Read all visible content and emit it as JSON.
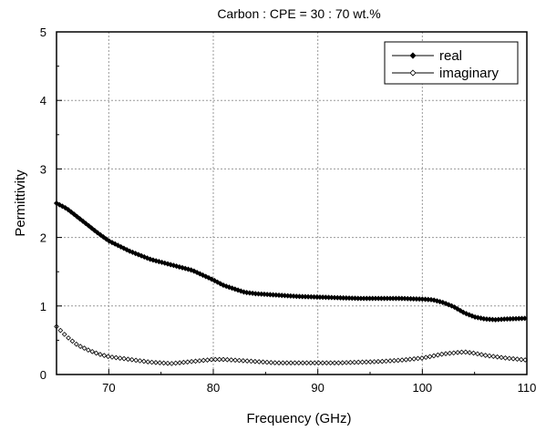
{
  "chart_data": {
    "type": "line",
    "title": "Carbon : CPE = 30 : 70 wt.%",
    "xlabel": "Frequency (GHz)",
    "ylabel": "Permittivity",
    "xlim": [
      65,
      110
    ],
    "ylim": [
      0,
      5
    ],
    "xticks": [
      "70",
      "80",
      "90",
      "100",
      "110"
    ],
    "yticks": [
      "0",
      "1",
      "2",
      "3",
      "4",
      "5"
    ],
    "grid": true,
    "legend_position": "top-right",
    "series": [
      {
        "name": "real",
        "marker": "filled-diamond",
        "color": "#000000",
        "x": [
          65,
          66,
          67,
          68,
          69,
          70,
          72,
          74,
          76,
          78,
          79,
          80,
          81,
          82,
          83,
          84,
          86,
          88,
          90,
          92,
          94,
          96,
          98,
          100,
          101,
          102,
          103,
          104,
          105,
          106,
          107,
          108,
          110
        ],
        "y": [
          2.5,
          2.42,
          2.3,
          2.18,
          2.06,
          1.95,
          1.8,
          1.68,
          1.6,
          1.52,
          1.45,
          1.38,
          1.3,
          1.25,
          1.2,
          1.18,
          1.16,
          1.14,
          1.13,
          1.12,
          1.11,
          1.11,
          1.11,
          1.1,
          1.09,
          1.05,
          0.99,
          0.9,
          0.84,
          0.81,
          0.8,
          0.81,
          0.82
        ]
      },
      {
        "name": "imaginary",
        "marker": "open-diamond",
        "color": "#000000",
        "x": [
          65,
          66,
          67,
          68,
          69,
          70,
          72,
          74,
          76,
          78,
          80,
          81,
          82,
          84,
          86,
          88,
          90,
          92,
          94,
          96,
          98,
          100,
          102,
          104,
          105,
          106,
          108,
          110
        ],
        "y": [
          0.7,
          0.55,
          0.43,
          0.36,
          0.3,
          0.26,
          0.22,
          0.18,
          0.16,
          0.19,
          0.22,
          0.22,
          0.21,
          0.19,
          0.17,
          0.17,
          0.17,
          0.17,
          0.18,
          0.19,
          0.21,
          0.24,
          0.3,
          0.33,
          0.31,
          0.28,
          0.24,
          0.21
        ]
      }
    ]
  }
}
